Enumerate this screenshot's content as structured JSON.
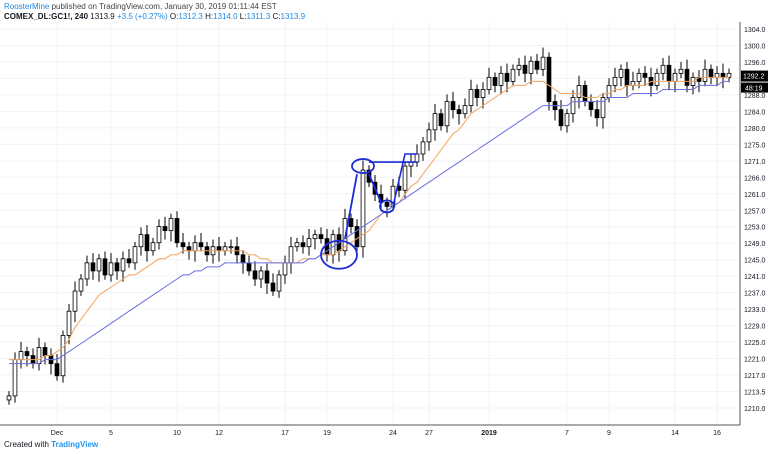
{
  "header": {
    "username": "RoosterMine",
    "published_text": "published on TradingView.com, January 30, 2019 01:11:44 EST",
    "symbol": "COMEX_DL:GC1!, 240",
    "last": "1313.9",
    "change": "+3.5 (+0.27%)",
    "o_label": "O:",
    "o_value": "1312.3",
    "h_label": "H:",
    "h_value": "1314.0",
    "l_label": "L:",
    "l_value": "1311.3",
    "c_label": "C:",
    "c_value": "1313.9"
  },
  "footer": {
    "created_with": "Created with",
    "brand": "TradingView"
  },
  "price_badge": {
    "value": "1292.2",
    "countdown": "48:19"
  },
  "colors": {
    "up_candle": "#ffffff",
    "down_candle": "#000000",
    "ema_fast": "#f5a35a",
    "ema_slow": "#6b6fe0",
    "annotation": "#1a2bd9",
    "grid": "#f0f3fa"
  },
  "chart_data": {
    "type": "candlestick",
    "y_ticks": [
      "1304.0",
      "1300.0",
      "1296.0",
      "1292.0",
      "1288.0",
      "1284.0",
      "1280.0",
      "1275.0",
      "1271.0",
      "1266.0",
      "1261.0",
      "1257.0",
      "1253.0",
      "1249.0",
      "1245.0",
      "1241.0",
      "1237.0",
      "1233.0",
      "1229.0",
      "1225.0",
      "1221.0",
      "1217.0",
      "1213.5",
      "1210.0"
    ],
    "x_ticks": [
      {
        "label": "Dec",
        "i": 8
      },
      {
        "label": "5",
        "i": 17
      },
      {
        "label": "10",
        "i": 28
      },
      {
        "label": "12",
        "i": 35
      },
      {
        "label": "17",
        "i": 46
      },
      {
        "label": "19",
        "i": 53
      },
      {
        "label": "24",
        "i": 64
      },
      {
        "label": "27",
        "i": 70
      },
      {
        "label": "2019",
        "i": 80
      },
      {
        "label": "7",
        "i": 93
      },
      {
        "label": "9",
        "i": 100
      },
      {
        "label": "14",
        "i": 111
      },
      {
        "label": "16",
        "i": 118
      }
    ],
    "close": [
      1213,
      1222,
      1224,
      1223,
      1221,
      1225,
      1223,
      1221,
      1218,
      1228,
      1234,
      1239,
      1242,
      1246,
      1244,
      1247,
      1243,
      1246,
      1244,
      1247,
      1246,
      1250,
      1253,
      1249,
      1251,
      1255,
      1254,
      1257,
      1251,
      1250,
      1249,
      1251,
      1250,
      1248,
      1250,
      1249,
      1250,
      1250,
      1248,
      1246,
      1244,
      1242,
      1244,
      1241,
      1239,
      1243,
      1246,
      1250,
      1251,
      1250,
      1252,
      1253,
      1252,
      1248,
      1253,
      1249,
      1257,
      1255,
      1250,
      1269,
      1266,
      1263,
      1261,
      1260,
      1265,
      1264,
      1270,
      1271,
      1273,
      1276,
      1279,
      1283,
      1280,
      1286,
      1284,
      1283,
      1285,
      1289,
      1287,
      1289,
      1292,
      1290,
      1293,
      1291,
      1294,
      1295,
      1293,
      1296,
      1294,
      1297,
      1286,
      1284,
      1280,
      1283,
      1287,
      1290,
      1286,
      1284,
      1282,
      1287,
      1290,
      1292,
      1294,
      1290,
      1291,
      1293,
      1292,
      1290,
      1293,
      1295,
      1291,
      1293,
      1294,
      1290,
      1292,
      1291,
      1294,
      1292,
      1293,
      1292,
      1293
    ],
    "ema_fast": [
      1222,
      1222,
      1222,
      1222,
      1222,
      1222,
      1223,
      1223,
      1224,
      1225,
      1227,
      1230,
      1232,
      1234,
      1236,
      1238,
      1239,
      1240,
      1241,
      1242,
      1243,
      1243,
      1244,
      1245,
      1246,
      1247,
      1247,
      1248,
      1248,
      1249,
      1249,
      1249,
      1249,
      1249,
      1249,
      1249,
      1249,
      1249,
      1249,
      1249,
      1248,
      1248,
      1247,
      1247,
      1246,
      1246,
      1246,
      1246,
      1246,
      1247,
      1247,
      1247,
      1248,
      1248,
      1248,
      1249,
      1250,
      1251,
      1252,
      1253,
      1254,
      1256,
      1258,
      1259,
      1260,
      1261,
      1263,
      1265,
      1266,
      1268,
      1270,
      1272,
      1274,
      1276,
      1278,
      1279,
      1281,
      1283,
      1284,
      1285,
      1286,
      1287,
      1288,
      1289,
      1290,
      1290,
      1290,
      1291,
      1291,
      1291,
      1290,
      1289,
      1288,
      1288,
      1288,
      1288,
      1287,
      1287,
      1287,
      1288,
      1288,
      1289,
      1289,
      1290,
      1290,
      1290,
      1290,
      1291,
      1291,
      1291,
      1291,
      1291,
      1291,
      1291,
      1291,
      1292,
      1292,
      1292,
      1292,
      1292,
      1292
    ],
    "ema_slow": [
      1221,
      1221,
      1221,
      1221,
      1221,
      1221,
      1222,
      1222,
      1222,
      1223,
      1224,
      1225,
      1226,
      1227,
      1228,
      1229,
      1230,
      1231,
      1232,
      1233,
      1234,
      1235,
      1236,
      1237,
      1238,
      1239,
      1240,
      1241,
      1242,
      1243,
      1243,
      1244,
      1244,
      1245,
      1245,
      1245,
      1246,
      1246,
      1246,
      1246,
      1246,
      1246,
      1246,
      1246,
      1246,
      1246,
      1246,
      1246,
      1246,
      1246,
      1247,
      1247,
      1248,
      1249,
      1250,
      1251,
      1252,
      1253,
      1254,
      1255,
      1256,
      1257,
      1258,
      1259,
      1260,
      1261,
      1262,
      1263,
      1264,
      1265,
      1266,
      1267,
      1268,
      1269,
      1270,
      1271,
      1272,
      1273,
      1274,
      1275,
      1276,
      1277,
      1278,
      1279,
      1280,
      1281,
      1282,
      1283,
      1284,
      1285,
      1285,
      1285,
      1285,
      1285,
      1286,
      1286,
      1286,
      1286,
      1286,
      1286,
      1287,
      1287,
      1287,
      1287,
      1288,
      1288,
      1288,
      1288,
      1288,
      1289,
      1289,
      1289,
      1289,
      1289,
      1289,
      1290,
      1290,
      1290,
      1290,
      1291,
      1291
    ]
  }
}
